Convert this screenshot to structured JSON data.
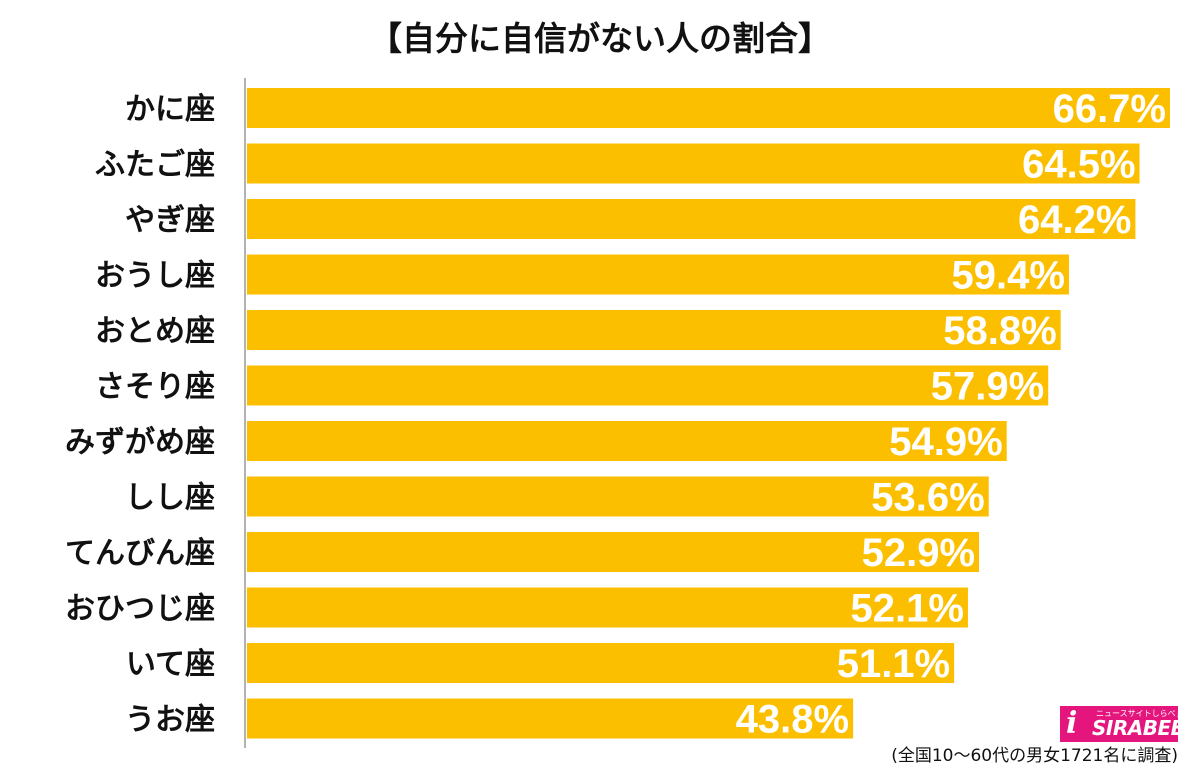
{
  "colors": {
    "bar": "#fcbf00",
    "value_text": "#ffffff",
    "label_text": "#111111",
    "axis": "#999999"
  },
  "logo": {
    "main": "SIRABEE",
    "sub": "ニュースサイトしらべぇ"
  },
  "footnote": "(全国10～60代の男女1721名に調査)",
  "chart_data": {
    "type": "bar",
    "orientation": "horizontal",
    "title": "【自分に自信がない人の割合】",
    "categories": [
      "かに座",
      "ふたご座",
      "やぎ座",
      "おうし座",
      "おとめ座",
      "さそり座",
      "みずがめ座",
      "しし座",
      "てんびん座",
      "おひつじ座",
      "いて座",
      "うお座"
    ],
    "values": [
      66.7,
      64.5,
      64.2,
      59.4,
      58.8,
      57.9,
      54.9,
      53.6,
      52.9,
      52.1,
      51.1,
      43.8
    ],
    "value_labels": [
      "66.7%",
      "64.5%",
      "64.2%",
      "59.4%",
      "58.8%",
      "57.9%",
      "54.9%",
      "53.6%",
      "52.9%",
      "52.1%",
      "51.1%",
      "43.8%"
    ],
    "unit": "%",
    "xlim": [
      0,
      66.7
    ],
    "grid": false,
    "legend": "none"
  }
}
